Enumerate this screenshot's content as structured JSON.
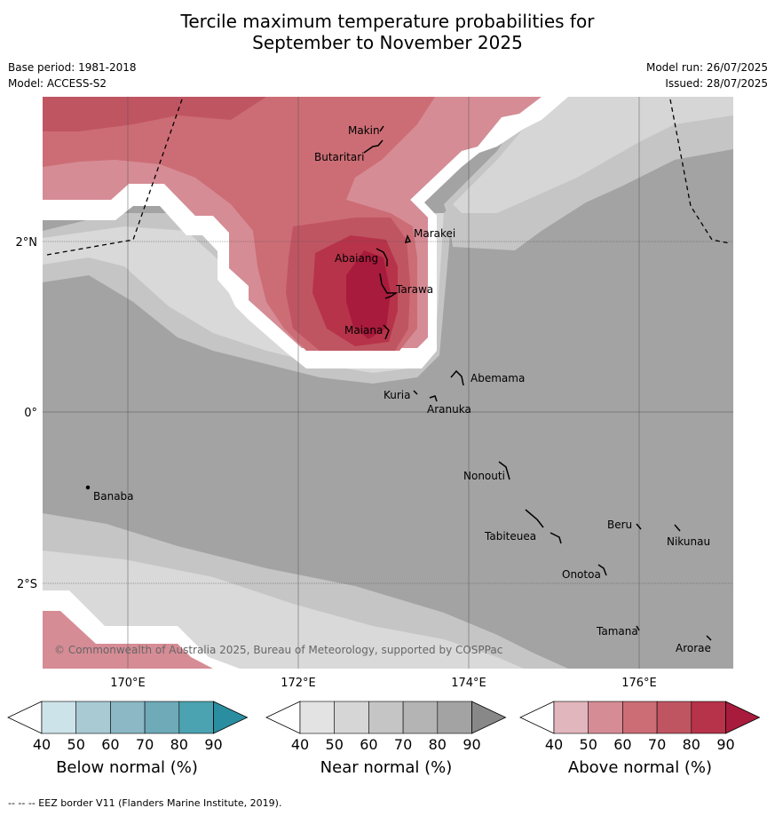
{
  "title_line1": "Tercile maximum temperature probabilities for",
  "title_line2": "September to November 2025",
  "base_period": "Base period: 1981-2018",
  "model": "Model: ACCESS-S2",
  "model_run": "Model run: 26/07/2025",
  "issued": "Issued: 28/07/2025",
  "copyright": "© Commonwealth of Australia 2025, Bureau of Meteorology, supported by COSPPac",
  "lat_labels": [
    "2°N",
    "0°",
    "2°S"
  ],
  "lon_labels": [
    "170°E",
    "172°E",
    "174°E",
    "176°E"
  ],
  "places": [
    {
      "name": "Makin"
    },
    {
      "name": "Butaritari"
    },
    {
      "name": "Marakei"
    },
    {
      "name": "Abaiang"
    },
    {
      "name": "Tarawa"
    },
    {
      "name": "Maiana"
    },
    {
      "name": "Abemama"
    },
    {
      "name": "Kuria"
    },
    {
      "name": "Aranuka"
    },
    {
      "name": "Banaba"
    },
    {
      "name": "Nonouti"
    },
    {
      "name": "Beru"
    },
    {
      "name": "Tabiteuea"
    },
    {
      "name": "Nikunau"
    },
    {
      "name": "Onotoa"
    },
    {
      "name": "Tamana"
    },
    {
      "name": "Arorae"
    }
  ],
  "colorbars": [
    {
      "label": "Below normal (%)",
      "ticks": [
        "40",
        "50",
        "60",
        "70",
        "80",
        "90"
      ],
      "colors": [
        "#cde3ea",
        "#a9cad3",
        "#8bb8c4",
        "#6eaab8",
        "#4ba2b1",
        "#2b8ea0"
      ]
    },
    {
      "label": "Near normal (%)",
      "ticks": [
        "40",
        "50",
        "60",
        "70",
        "80",
        "90"
      ],
      "colors": [
        "#e3e3e3",
        "#d6d6d6",
        "#c5c5c5",
        "#b4b4b4",
        "#a3a3a3",
        "#888888"
      ]
    },
    {
      "label": "Above normal (%)",
      "ticks": [
        "40",
        "50",
        "60",
        "70",
        "80",
        "90"
      ],
      "colors": [
        "#e2b6bd",
        "#d68c95",
        "#cc6d75",
        "#c05562",
        "#b7334a",
        "#a81b3c"
      ]
    }
  ],
  "footer": "--  --  -- EEZ border V11 (Flanders Marine Institute, 2019)."
}
